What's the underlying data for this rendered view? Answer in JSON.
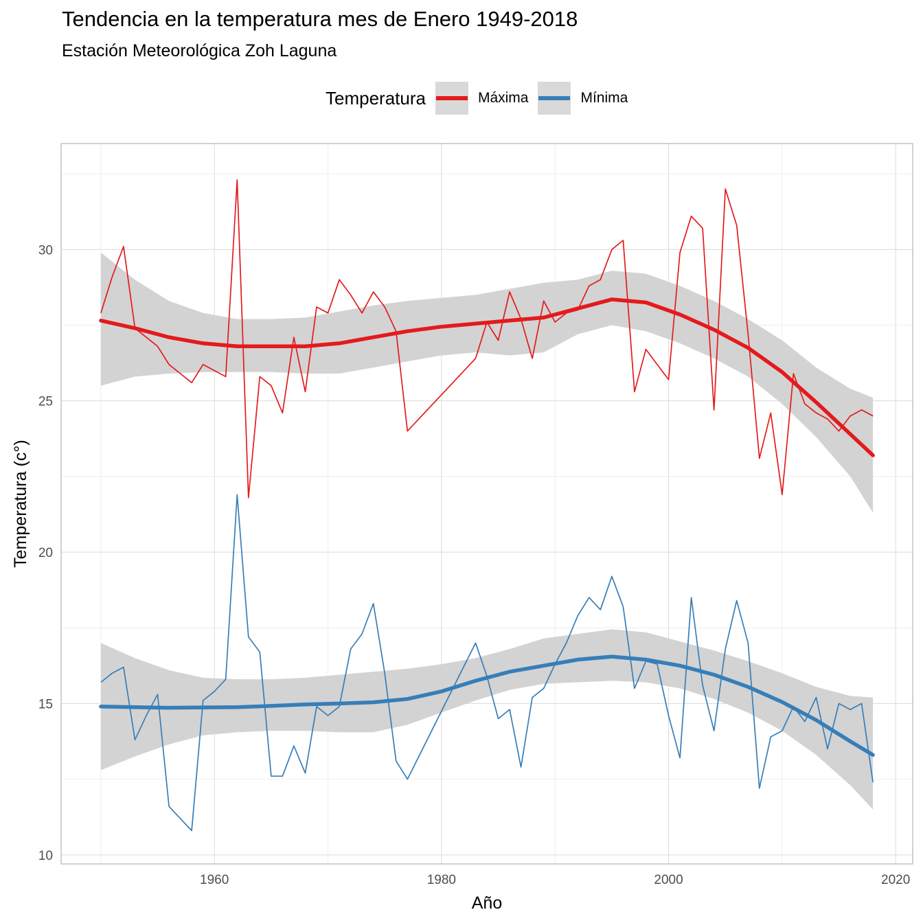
{
  "chart_data": {
    "type": "line",
    "title": "Tendencia en la temperatura mes de Enero 1949-2018",
    "subtitle": "Estación Meteorológica Zoh Laguna",
    "xlabel": "Año",
    "ylabel": "Temperatura (c°)",
    "xlim": [
      1946.5,
      2021.5
    ],
    "ylim": [
      9.7,
      33.5
    ],
    "x_ticks": [
      1960,
      1980,
      2000,
      2020
    ],
    "y_ticks": [
      10,
      15,
      20,
      25,
      30
    ],
    "grid": true,
    "legend": {
      "title": "Temperatura",
      "position": "top"
    },
    "series": [
      {
        "name": "Máxima",
        "color": "#e41a1c",
        "x": [
          1950,
          1951,
          1952,
          1953,
          1954,
          1955,
          1956,
          1957,
          1958,
          1959,
          1960,
          1961,
          1962,
          1963,
          1964,
          1965,
          1966,
          1967,
          1968,
          1969,
          1970,
          1971,
          1972,
          1973,
          1974,
          1975,
          1976,
          1977,
          1983,
          1984,
          1985,
          1986,
          1987,
          1988,
          1989,
          1990,
          1991,
          1992,
          1993,
          1994,
          1995,
          1996,
          1997,
          1998,
          1999,
          2000,
          2001,
          2002,
          2003,
          2004,
          2005,
          2006,
          2007,
          2008,
          2009,
          2010,
          2011,
          2012,
          2013,
          2014,
          2015,
          2016,
          2017,
          2018
        ],
        "values": [
          27.9,
          29.1,
          30.1,
          27.4,
          27.1,
          26.8,
          26.2,
          25.9,
          25.6,
          26.2,
          26.0,
          25.8,
          32.3,
          21.8,
          25.8,
          25.5,
          24.6,
          27.1,
          25.3,
          28.1,
          27.9,
          29.0,
          28.5,
          27.9,
          28.6,
          28.1,
          27.3,
          24.0,
          26.4,
          27.6,
          27.0,
          28.6,
          27.7,
          26.4,
          28.3,
          27.6,
          27.9,
          28.0,
          28.8,
          29.0,
          30.0,
          30.3,
          25.3,
          26.7,
          26.2,
          25.7,
          29.9,
          31.1,
          30.7,
          24.7,
          32.0,
          30.8,
          27.2,
          23.1,
          24.6,
          21.9,
          25.9,
          24.9,
          24.6,
          24.4,
          24.0,
          24.5,
          24.7,
          24.5
        ]
      },
      {
        "name": "Mínima",
        "color": "#377eb8",
        "x": [
          1950,
          1951,
          1952,
          1953,
          1954,
          1955,
          1956,
          1957,
          1958,
          1959,
          1960,
          1961,
          1962,
          1963,
          1964,
          1965,
          1966,
          1967,
          1968,
          1969,
          1970,
          1971,
          1972,
          1973,
          1974,
          1975,
          1976,
          1977,
          1983,
          1984,
          1985,
          1986,
          1987,
          1988,
          1989,
          1990,
          1991,
          1992,
          1993,
          1994,
          1995,
          1996,
          1997,
          1998,
          1999,
          2000,
          2001,
          2002,
          2003,
          2004,
          2005,
          2006,
          2007,
          2008,
          2009,
          2010,
          2011,
          2012,
          2013,
          2014,
          2015,
          2016,
          2017,
          2018
        ],
        "values": [
          15.7,
          16.0,
          16.2,
          13.8,
          14.6,
          15.3,
          11.6,
          11.2,
          10.8,
          15.1,
          15.4,
          15.8,
          21.9,
          17.2,
          16.7,
          12.6,
          12.6,
          13.6,
          12.7,
          14.9,
          14.6,
          14.9,
          16.8,
          17.3,
          18.3,
          16.0,
          13.1,
          12.5,
          17.0,
          15.9,
          14.5,
          14.8,
          12.9,
          15.2,
          15.5,
          16.3,
          17.0,
          17.9,
          18.5,
          18.1,
          19.2,
          18.2,
          15.5,
          16.4,
          16.3,
          14.6,
          13.2,
          18.5,
          15.6,
          14.1,
          16.8,
          18.4,
          17.0,
          12.2,
          13.9,
          14.1,
          14.9,
          14.4,
          15.2,
          13.5,
          15.0,
          14.8,
          15.0,
          12.4
        ]
      }
    ],
    "smooth": [
      {
        "name": "Máxima",
        "color": "#e41a1c",
        "x": [
          1950,
          1953,
          1956,
          1959,
          1962,
          1965,
          1968,
          1971,
          1974,
          1977,
          1980,
          1983,
          1986,
          1989,
          1992,
          1995,
          1998,
          2001,
          2004,
          2007,
          2010,
          2013,
          2016,
          2018
        ],
        "values": [
          27.65,
          27.4,
          27.1,
          26.9,
          26.8,
          26.8,
          26.8,
          26.9,
          27.1,
          27.3,
          27.45,
          27.55,
          27.65,
          27.75,
          28.05,
          28.35,
          28.25,
          27.85,
          27.35,
          26.75,
          25.95,
          24.95,
          23.9,
          23.2
        ],
        "band_low": [
          25.5,
          25.8,
          25.9,
          25.95,
          25.95,
          25.95,
          25.9,
          25.9,
          26.1,
          26.3,
          26.5,
          26.6,
          26.5,
          26.6,
          27.2,
          27.5,
          27.3,
          26.9,
          26.4,
          25.8,
          24.9,
          23.8,
          22.5,
          21.3
        ],
        "band_high": [
          29.9,
          29.0,
          28.3,
          27.9,
          27.7,
          27.7,
          27.75,
          27.95,
          28.15,
          28.3,
          28.4,
          28.5,
          28.7,
          28.9,
          29.0,
          29.3,
          29.2,
          28.8,
          28.3,
          27.7,
          27.0,
          26.1,
          25.4,
          25.1
        ]
      },
      {
        "name": "Mínima",
        "color": "#377eb8",
        "x": [
          1950,
          1953,
          1956,
          1959,
          1962,
          1965,
          1968,
          1971,
          1974,
          1977,
          1980,
          1983,
          1986,
          1989,
          1992,
          1995,
          1998,
          2001,
          2004,
          2007,
          2010,
          2013,
          2016,
          2018
        ],
        "values": [
          14.9,
          14.88,
          14.86,
          14.87,
          14.88,
          14.92,
          14.97,
          15.0,
          15.04,
          15.15,
          15.4,
          15.75,
          16.05,
          16.25,
          16.45,
          16.55,
          16.45,
          16.25,
          15.95,
          15.55,
          15.05,
          14.45,
          13.75,
          13.3
        ],
        "band_low": [
          12.8,
          13.25,
          13.65,
          13.95,
          14.05,
          14.1,
          14.1,
          14.05,
          14.05,
          14.3,
          14.7,
          15.1,
          15.45,
          15.65,
          15.7,
          15.75,
          15.7,
          15.5,
          15.15,
          14.7,
          14.1,
          13.3,
          12.3,
          11.5
        ],
        "band_high": [
          17.0,
          16.5,
          16.1,
          15.85,
          15.8,
          15.8,
          15.85,
          15.95,
          16.05,
          16.15,
          16.3,
          16.5,
          16.8,
          17.15,
          17.3,
          17.45,
          17.35,
          17.05,
          16.75,
          16.4,
          16.0,
          15.55,
          15.25,
          15.2
        ]
      }
    ],
    "band_color": "#d3d3d3"
  }
}
